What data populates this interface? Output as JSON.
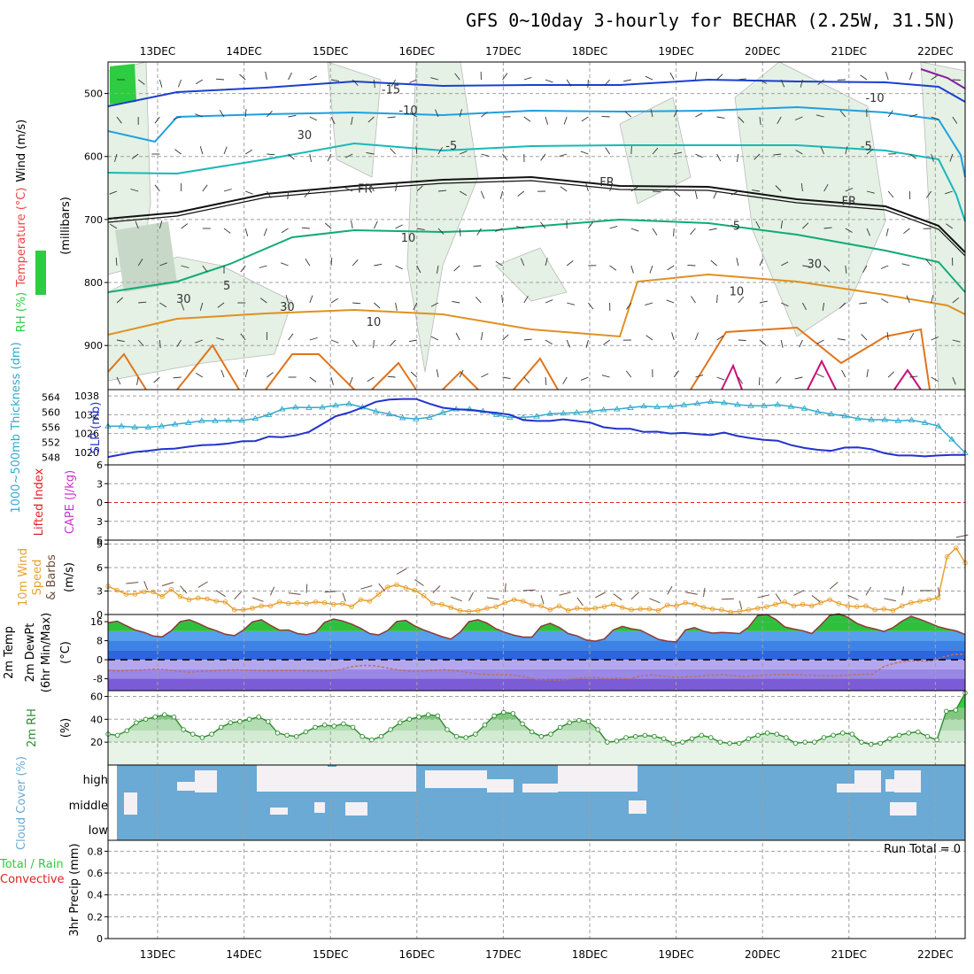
{
  "title": "GFS 0~10day 3-hourly for BECHAR (2.25W, 31.5N)",
  "dates": [
    "13DEC",
    "14DEC",
    "15DEC",
    "16DEC",
    "17DEC",
    "18DEC",
    "19DEC",
    "20DEC",
    "21DEC",
    "22DEC"
  ],
  "colors": {
    "grid": "#a0a0a0",
    "rh_green": "#2ecc40",
    "rh_light": "#e4f1e4",
    "slp_blue": "#2233cc",
    "thick_cyan": "#33aacc",
    "wind_orange": "#e8a030",
    "barb_brown": "#6b4b3b",
    "temp_green": "#2fbf3f",
    "dew_purple": "#7b5bd6",
    "cloud_blue": "#6aaad4",
    "cloud_white": "#f4f0f4",
    "red": "#dd2222",
    "magenta": "#cc33cc"
  },
  "chart_data": [
    {
      "name": "upper",
      "type": "line",
      "ylabel_parts": [
        "RH (%)",
        "Temperature (°C)",
        "Wind (m/s)"
      ],
      "ylabel_side": "(millibars)",
      "ylim": [
        450,
        970
      ],
      "yticks": [
        500,
        600,
        700,
        800,
        900
      ],
      "contour_labels": [
        {
          "text": "-15",
          "day": 2.7,
          "p": 493
        },
        {
          "text": "-10",
          "day": 8.3,
          "p": 506
        },
        {
          "text": "-10",
          "day": 2.9,
          "p": 526
        },
        {
          "text": "-5",
          "day": 3.4,
          "p": 582
        },
        {
          "text": "-5",
          "day": 8.2,
          "p": 583
        },
        {
          "text": "FR",
          "day": 2.4,
          "p": 650
        },
        {
          "text": "FR",
          "day": 5.2,
          "p": 640
        },
        {
          "text": "FR",
          "day": 8.0,
          "p": 670
        },
        {
          "text": "5",
          "day": 6.7,
          "p": 709
        },
        {
          "text": "5",
          "day": 0.8,
          "p": 804
        },
        {
          "text": "10",
          "day": 6.7,
          "p": 813
        },
        {
          "text": "10",
          "day": 2.5,
          "p": 862
        },
        {
          "text": "30",
          "day": 1.7,
          "p": 565
        },
        {
          "text": "30",
          "day": 7.6,
          "p": 770
        },
        {
          "text": "30",
          "day": 1.5,
          "p": 838
        },
        {
          "text": "30",
          "day": 0.3,
          "p": 825
        },
        {
          "text": "10",
          "day": 2.9,
          "p": 728
        }
      ]
    },
    {
      "name": "slp_thickness",
      "type": "line",
      "ylabel_left": "1000~500mb Thickness (dm)",
      "ylabel_right": "SLP (mb)",
      "left_ticks": [
        548,
        552,
        556,
        560,
        564
      ],
      "right_ticks": [
        1020,
        1026,
        1032,
        1038
      ],
      "series": [
        {
          "name": "Thickness",
          "unit": "dm",
          "values": [
            556.3,
            556.3,
            556.0,
            556.0,
            556.3,
            556.8,
            557.2,
            557.7,
            557.7,
            557.8,
            557.8,
            558.3,
            559.3,
            560.8,
            561.3,
            561.2,
            561.3,
            561.8,
            562.2,
            561.3,
            560.2,
            559.5,
            558.5,
            558.2,
            558.6,
            559.9,
            560.8,
            560.8,
            560.3,
            559.3,
            558.6,
            558.6,
            558.9,
            559.6,
            559.7,
            559.9,
            560.2,
            560.6,
            560.8,
            561.2,
            561.6,
            561.4,
            561.5,
            561.9,
            562.3,
            562.8,
            562.5,
            562.0,
            561.7,
            561.7,
            562.0,
            561.5,
            561.0,
            560.1,
            559.5,
            559.0,
            558.3,
            558.0,
            558.0,
            557.7,
            557.9,
            557.2,
            556.3,
            552.8,
            549.2
          ]
        },
        {
          "name": "SLP",
          "unit": "mb",
          "values": [
            1018.5,
            1019.3,
            1020.1,
            1020.5,
            1021.0,
            1021.2,
            1021.8,
            1022.3,
            1022.4,
            1022.8,
            1023.5,
            1023.6,
            1025.0,
            1024.8,
            1025.4,
            1026.5,
            1029.0,
            1031.5,
            1032.7,
            1034.3,
            1036.1,
            1036.8,
            1037.0,
            1037.0,
            1035.5,
            1034.2,
            1033.7,
            1033.5,
            1033.0,
            1032.6,
            1032.0,
            1030.3,
            1030.0,
            1030.0,
            1030.5,
            1030.0,
            1029.5,
            1028.0,
            1027.5,
            1027.5,
            1026.5,
            1026.6,
            1026.0,
            1026.2,
            1025.8,
            1025.5,
            1026.3,
            1025.2,
            1024.5,
            1024.0,
            1023.7,
            1022.3,
            1021.4,
            1020.8,
            1020.5,
            1021.5,
            1021.6,
            1021.0,
            1019.7,
            1019.0,
            1019.0,
            1018.7,
            1019.0,
            1019.2,
            1019.2
          ]
        }
      ]
    },
    {
      "name": "stability",
      "type": "line",
      "ylabel_left": "Lifted Index",
      "ylabel_right": "CAPE (J/kg)",
      "yticks": [
        -6,
        -3,
        0,
        3,
        6
      ],
      "ytick_labels": [
        "6",
        "3",
        "0",
        "3",
        "6"
      ],
      "series": [
        {
          "name": "Lifted Index",
          "values": []
        }
      ]
    },
    {
      "name": "wind10m",
      "type": "line",
      "ylabel_parts": [
        "10m Wind",
        "Speed",
        "& Barbs",
        "(m/s)"
      ],
      "ylim": [
        0,
        9
      ],
      "yticks": [
        0,
        3,
        6,
        9
      ],
      "series": [
        {
          "name": "10m Wind Speed",
          "values": [
            3.6,
            3.1,
            2.6,
            2.6,
            2.9,
            2.9,
            2.3,
            3.2,
            2.3,
            1.9,
            2.1,
            2.0,
            1.7,
            1.6,
            0.6,
            0.6,
            0.8,
            1.1,
            1.1,
            1.6,
            1.4,
            1.5,
            1.4,
            1.6,
            1.5,
            1.3,
            1.4,
            1.0,
            1.9,
            1.7,
            2.6,
            3.5,
            3.8,
            3.4,
            3.1,
            2.4,
            1.4,
            1.3,
            0.9,
            0.5,
            0.4,
            0.5,
            0.8,
            1.0,
            1.5,
            1.9,
            1.7,
            1.2,
            1.1,
            0.6,
            1.1,
            0.5,
            0.8,
            0.7,
            0.8,
            1.0,
            1.3,
            0.9,
            0.6,
            0.7,
            0.7,
            0.5,
            1.2,
            1.1,
            1.5,
            1.3,
            0.9,
            0.7,
            0.6,
            0.3,
            0.4,
            0.6,
            0.8,
            1.0,
            1.3,
            1.6,
            1.1,
            1.3,
            1.1,
            1.5,
            1.9,
            1.4,
            1.1,
            1.0,
            1.1,
            0.6,
            0.7,
            0.5,
            1.1,
            1.5,
            1.7,
            1.9,
            2.1,
            7.4,
            8.5,
            6.6
          ]
        }
      ]
    },
    {
      "name": "temp2m",
      "type": "area",
      "ylabel_parts": [
        "2m Temp",
        "2m DewPt",
        "(6hr Min/Max)",
        "(°C)"
      ],
      "ylim": [
        -13,
        19
      ],
      "yticks": [
        -8,
        0,
        8,
        16
      ],
      "series": [
        {
          "name": "2m Temp",
          "values": [
            15.5,
            16.2,
            14.3,
            12.5,
            11.5,
            10.0,
            9.6,
            12.1,
            16.0,
            16.8,
            15.3,
            13.5,
            12.2,
            10.7,
            10.1,
            12.4,
            15.9,
            16.8,
            14.5,
            12.4,
            12.5,
            11.0,
            10.5,
            11.5,
            15.7,
            17.1,
            16.3,
            15.0,
            13.2,
            11.0,
            10.4,
            12.3,
            16.1,
            16.5,
            14.2,
            12.5,
            11.1,
            9.7,
            8.7,
            11.5,
            16.0,
            16.8,
            15.4,
            13.0,
            11.5,
            10.3,
            9.5,
            9.5,
            14.0,
            15.3,
            13.6,
            11.0,
            10.0,
            8.3,
            7.8,
            8.7,
            12.5,
            14.0,
            13.0,
            12.4,
            10.5,
            8.6,
            7.8,
            7.5,
            12.5,
            13.5,
            12.0,
            11.2,
            11.5,
            11.3,
            11.0,
            13.7,
            18.5,
            19.0,
            17.0,
            13.8,
            12.9,
            12.2,
            11.0,
            14.6,
            18.6,
            19.3,
            17.8,
            15.3,
            13.8,
            12.9,
            11.9,
            13.5,
            16.2,
            18.2,
            17.0,
            15.5,
            13.9,
            12.9,
            12.1,
            10.6
          ]
        },
        {
          "name": "2m DewPt",
          "values": [
            -4.5,
            -4.8,
            -4.5,
            -4.3,
            -4.0,
            -4.2,
            -4.8,
            -5.3,
            -4.9,
            -4.7,
            -4.4,
            -4.2,
            -4.4,
            -4.6,
            -4.7,
            -4.5,
            -4.5,
            -4.7,
            -4.8,
            -4.7,
            -4.2,
            -3.0,
            -2.4,
            -2.5,
            -3.4,
            -4.3,
            -4.8,
            -4.9,
            -4.5,
            -4.2,
            -4.6,
            -5.3,
            -6.0,
            -6.2,
            -6.3,
            -6.5,
            -7.2,
            -8.3,
            -8.5,
            -8.6,
            -8.1,
            -7.6,
            -7.4,
            -7.9,
            -7.7,
            -8.0,
            -6.8,
            -6.4,
            -6.9,
            -7.4,
            -7.2,
            -7.0,
            -6.5,
            -6.3,
            -6.7,
            -7.1,
            -6.7,
            -6.5,
            -6.2,
            -6.2,
            -6.4,
            -6.6,
            -6.8,
            -6.7,
            -6.5,
            -6.1,
            -6.0,
            -2.8,
            -1.4,
            -0.6,
            -0.4,
            -0.6,
            1.0,
            2.2,
            2.3
          ]
        }
      ]
    },
    {
      "name": "rh2m",
      "type": "area",
      "ylabel_parts": [
        "2m RH",
        "(%)"
      ],
      "ylim": [
        0,
        65
      ],
      "yticks": [
        20,
        40,
        60
      ],
      "series": [
        {
          "name": "2m RH",
          "values": [
            27,
            26,
            30,
            37,
            40,
            42,
            44,
            42,
            31,
            27,
            24,
            27,
            33,
            37,
            38,
            40,
            42,
            38,
            28,
            26,
            25,
            29,
            33,
            35,
            34,
            36,
            33,
            25,
            22,
            25,
            31,
            37,
            40,
            42,
            44,
            43,
            31,
            25,
            24,
            27,
            35,
            43,
            46,
            45,
            36,
            29,
            25,
            27,
            33,
            37,
            39,
            38,
            31,
            20,
            21,
            24,
            25,
            26,
            25,
            23,
            19,
            20,
            23,
            26,
            24,
            20,
            19,
            19,
            23,
            26,
            28,
            27,
            24,
            19,
            20,
            20,
            24,
            26,
            28,
            27,
            20,
            18,
            19,
            23,
            26,
            28,
            29,
            25,
            22,
            47,
            48,
            63
          ]
        }
      ]
    },
    {
      "name": "cloud",
      "type": "heatmap",
      "ylabel": "Cloud Cover (%)",
      "yticks": [
        "high",
        "middle",
        "low"
      ]
    },
    {
      "name": "precip",
      "type": "bar",
      "ylabel_left": "Total / Rain",
      "ylabel_left2": "Convective",
      "ylabel_right": "3hr Precip (mm)",
      "ylim": [
        0,
        0.9
      ],
      "yticks": [
        "0",
        "0.2",
        "0.4",
        "0.6",
        "0.8"
      ],
      "run_total": "Run Total = 0",
      "values": []
    }
  ]
}
